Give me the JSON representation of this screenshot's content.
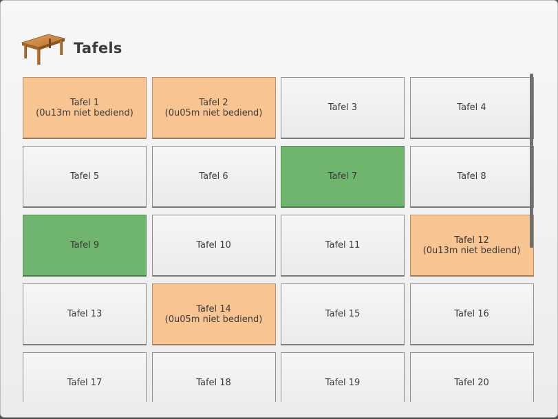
{
  "header": {
    "title": "Tafels",
    "icon": "table-icon"
  },
  "colors": {
    "unserved": "#f8c592",
    "occupied": "#70b56e",
    "free": "#f1f1f1"
  },
  "scroll": {
    "position_fraction": 0.0,
    "visible_fraction": 0.53
  },
  "tables": [
    {
      "name": "Tafel 1",
      "status_text": "(0u13m niet bediend)",
      "state": "unserved"
    },
    {
      "name": "Tafel 2",
      "status_text": "(0u05m niet bediend)",
      "state": "unserved"
    },
    {
      "name": "Tafel 3",
      "status_text": "",
      "state": "free"
    },
    {
      "name": "Tafel 4",
      "status_text": "",
      "state": "free"
    },
    {
      "name": "Tafel 5",
      "status_text": "",
      "state": "free"
    },
    {
      "name": "Tafel 6",
      "status_text": "",
      "state": "free"
    },
    {
      "name": "Tafel 7",
      "status_text": "",
      "state": "occupied"
    },
    {
      "name": "Tafel 8",
      "status_text": "",
      "state": "free"
    },
    {
      "name": "Tafel 9",
      "status_text": "",
      "state": "occupied"
    },
    {
      "name": "Tafel 10",
      "status_text": "",
      "state": "free"
    },
    {
      "name": "Tafel 11",
      "status_text": "",
      "state": "free"
    },
    {
      "name": "Tafel 12",
      "status_text": "(0u13m niet bediend)",
      "state": "unserved"
    },
    {
      "name": "Tafel 13",
      "status_text": "",
      "state": "free"
    },
    {
      "name": "Tafel 14",
      "status_text": "(0u05m niet bediend)",
      "state": "unserved"
    },
    {
      "name": "Tafel 15",
      "status_text": "",
      "state": "free"
    },
    {
      "name": "Tafel 16",
      "status_text": "",
      "state": "free"
    },
    {
      "name": "Tafel 17",
      "status_text": "",
      "state": "free"
    },
    {
      "name": "Tafel 18",
      "status_text": "",
      "state": "free"
    },
    {
      "name": "Tafel 19",
      "status_text": "",
      "state": "free"
    },
    {
      "name": "Tafel 20",
      "status_text": "",
      "state": "free"
    }
  ]
}
